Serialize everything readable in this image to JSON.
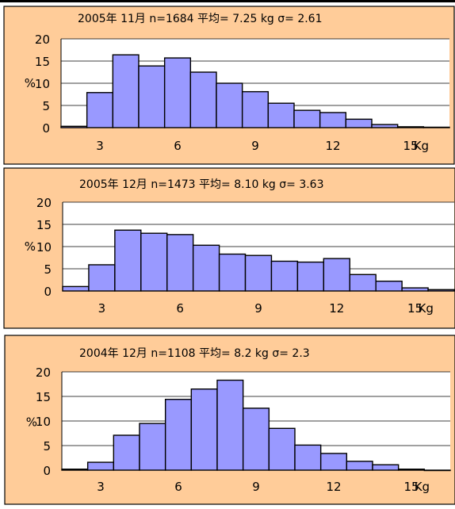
{
  "chart_data": [
    {
      "type": "bar",
      "title": "2005年  11月  n=1684  平均= 7.25 kg    σ=  2.61",
      "ylabel": "%",
      "xlabel": "Kg",
      "ylim": [
        0,
        20
      ],
      "yticks": [
        "20",
        "15",
        "10",
        "5",
        "0"
      ],
      "xticks": [
        "3",
        "6",
        "9",
        "12",
        "15"
      ],
      "values": [
        0.3,
        7.9,
        16.4,
        13.9,
        15.7,
        12.5,
        10.0,
        8.1,
        5.5,
        3.9,
        3.4,
        1.9,
        0.7,
        0.2,
        0.1
      ],
      "colors": {
        "panel_bg": "#ffcc99",
        "plot_bg": "#ffffff",
        "bar_fill": "#9999ff"
      }
    },
    {
      "type": "bar",
      "title": "2005年  12月  n=1473  平均=  8.10 kg    σ=  3.63",
      "ylabel": "%",
      "xlabel": "Kg",
      "ylim": [
        0,
        20
      ],
      "yticks": [
        "20",
        "15",
        "10",
        "5",
        "0"
      ],
      "xticks": [
        "3",
        "6",
        "9",
        "12",
        "15"
      ],
      "values": [
        1.0,
        5.9,
        13.7,
        13.0,
        12.7,
        10.3,
        8.3,
        8.0,
        6.7,
        6.5,
        7.3,
        3.7,
        2.2,
        0.7,
        0.3
      ],
      "colors": {
        "panel_bg": "#ffcc99",
        "plot_bg": "#ffffff",
        "bar_fill": "#9999ff"
      }
    },
    {
      "type": "bar",
      "title": "2004年  12月  n=1108  平均= 8.2 kg    σ= 2.3",
      "ylabel": "%",
      "xlabel": "Kg",
      "ylim": [
        0,
        20
      ],
      "yticks": [
        "20",
        "15",
        "10",
        "5",
        "0"
      ],
      "xticks": [
        "3",
        "6",
        "9",
        "12",
        "15"
      ],
      "values": [
        0.2,
        1.6,
        7.1,
        9.5,
        14.4,
        16.5,
        18.3,
        12.6,
        8.5,
        5.1,
        3.4,
        1.8,
        1.1,
        0.2,
        0.0
      ],
      "colors": {
        "panel_bg": "#ffcc99",
        "plot_bg": "#ffffff",
        "bar_fill": "#9999ff"
      }
    }
  ]
}
